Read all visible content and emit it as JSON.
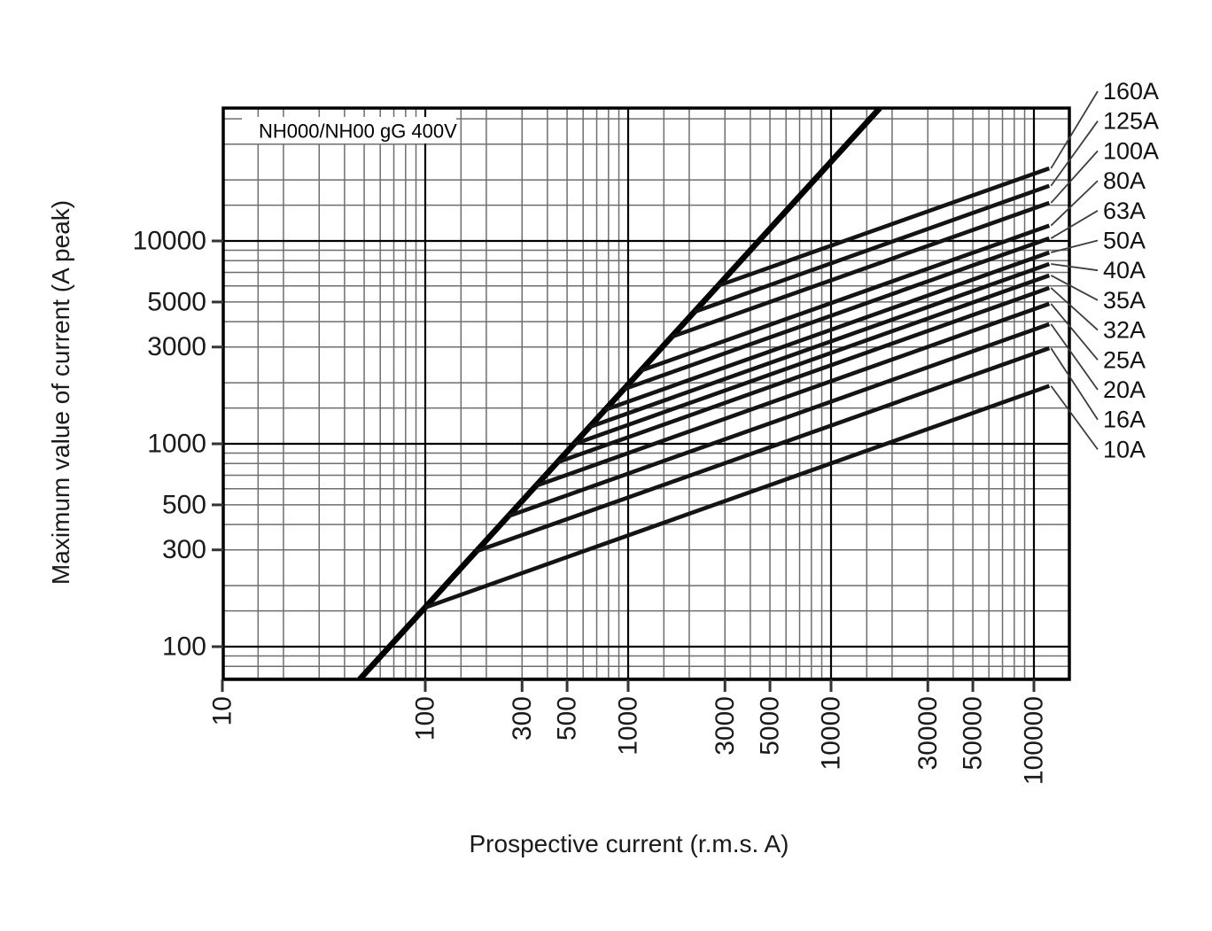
{
  "figure": {
    "background": "#ffffff"
  },
  "chart_data": {
    "type": "line",
    "title": "NH000/NH00 gG 400V",
    "xlabel": "Prospective current (r.m.s. A)",
    "ylabel": "Maximum value of current (A peak)",
    "log_x": true,
    "log_y": true,
    "x_range": [
      10,
      149000
    ],
    "y_range": [
      69,
      45200
    ],
    "x_ticks": [
      10,
      100,
      300,
      500,
      1000,
      3000,
      5000,
      10000,
      30000,
      50000,
      100000
    ],
    "y_ticks": [
      100,
      300,
      500,
      1000,
      3000,
      5000,
      10000
    ],
    "minor_grid_multiples": [
      1.5,
      2,
      3,
      4,
      5,
      6,
      7,
      8,
      9
    ],
    "grid": "on",
    "legend_position": "right-labels-with-leader-lines",
    "prospective_peak_line": {
      "name": "prospective-peak-line",
      "points": [
        [
          47.5,
          69
        ],
        [
          17400,
          45200
        ]
      ]
    },
    "series": [
      {
        "label": "160A",
        "points": [
          [
            2770,
            6010
          ],
          [
            119000,
            22800
          ]
        ]
      },
      {
        "label": "125A",
        "points": [
          [
            2120,
            4470
          ],
          [
            119000,
            18700
          ]
        ]
      },
      {
        "label": "100A",
        "points": [
          [
            1640,
            3370
          ],
          [
            119000,
            15400
          ]
        ]
      },
      {
        "label": "80A",
        "points": [
          [
            1150,
            2290
          ],
          [
            119000,
            11900
          ]
        ]
      },
      {
        "label": "63A",
        "points": [
          [
            953,
            1860
          ],
          [
            119000,
            10300
          ]
        ]
      },
      {
        "label": "50A",
        "points": [
          [
            768,
            1470
          ],
          [
            119000,
            8770
          ]
        ]
      },
      {
        "label": "40A",
        "points": [
          [
            644,
            1210
          ],
          [
            119000,
            7700
          ]
        ]
      },
      {
        "label": "35A",
        "points": [
          [
            540,
            996
          ],
          [
            119000,
            6760
          ]
        ]
      },
      {
        "label": "32A",
        "points": [
          [
            447,
            810
          ],
          [
            119000,
            5870
          ]
        ]
      },
      {
        "label": "25A",
        "points": [
          [
            350,
            620
          ],
          [
            119000,
            4900
          ]
        ]
      },
      {
        "label": "20A",
        "points": [
          [
            257,
            440
          ],
          [
            119000,
            3890
          ]
        ]
      },
      {
        "label": "16A",
        "points": [
          [
            178,
            295
          ],
          [
            119000,
            2960
          ]
        ]
      },
      {
        "label": "10A",
        "points": [
          [
            100,
            156
          ],
          [
            119000,
            1930
          ]
        ]
      }
    ]
  },
  "colors": {
    "background": "#ffffff",
    "minor_grid": "#6e6e6e",
    "major_grid": "#000000",
    "frame": "#000000",
    "curve": "#141414",
    "peak_line": "#000000",
    "leader": "#3d3d3d",
    "text": "#1a1a1a"
  }
}
